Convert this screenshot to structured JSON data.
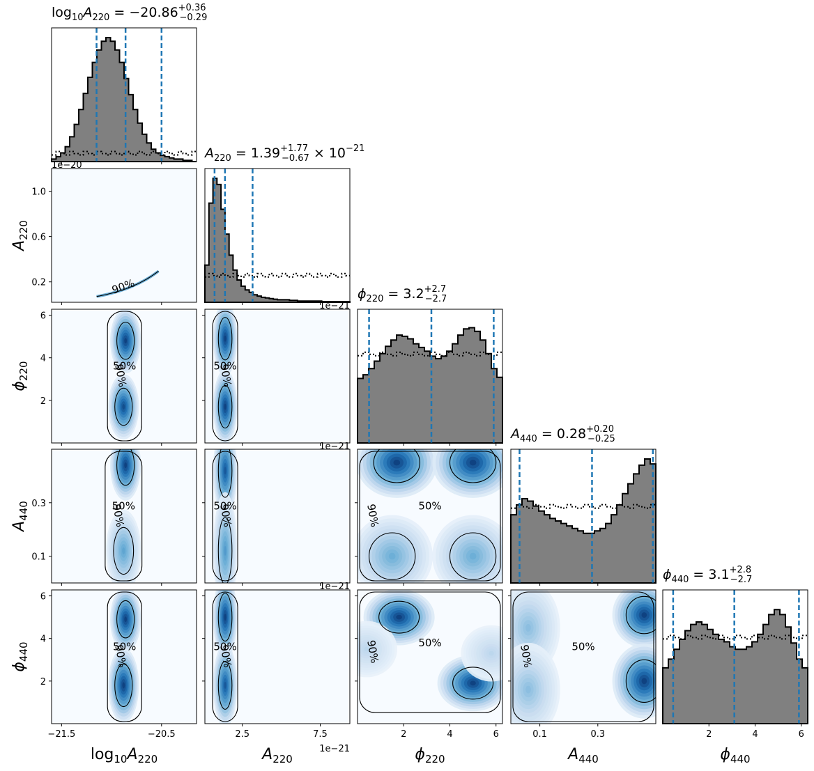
{
  "chart_data": {
    "type": "corner",
    "parameters": [
      {
        "id": "logA220",
        "label": "log10A220",
        "range": [
          -21.6,
          -20.15
        ],
        "ticks": [
          -21.5,
          -20.5
        ],
        "tick_labels": [
          "−21.5",
          "−20.5"
        ],
        "title": {
          "lead": "log",
          "lead_sub": "10",
          "sym": "A",
          "sym_sub": "220",
          "value": " = −20.86",
          "up": "+0.36",
          "down": "−0.29",
          "suffix": ""
        },
        "quantiles": [
          -21.15,
          -20.86,
          -20.5
        ],
        "posterior_hist": [
          0.02,
          0.04,
          0.07,
          0.12,
          0.2,
          0.3,
          0.42,
          0.55,
          0.68,
          0.8,
          0.9,
          0.97,
          1.0,
          0.97,
          0.9,
          0.8,
          0.67,
          0.54,
          0.42,
          0.31,
          0.22,
          0.15,
          0.1,
          0.07,
          0.05,
          0.04,
          0.03,
          0.02,
          0.02,
          0.01,
          0.01,
          0.0
        ],
        "prior_level": 0.07,
        "offset_text": "1e−20"
      },
      {
        "id": "A220",
        "label": "A220",
        "range": [
          0.1,
          9.4
        ],
        "ticks": [
          2.5,
          7.5
        ],
        "tick_labels": [
          "2.5",
          "7.5"
        ],
        "title": {
          "lead": "",
          "lead_sub": "",
          "sym": "A",
          "sym_sub": "220",
          "value": " = 1.39",
          "up": "+1.77",
          "down": "−0.67",
          "suffix": " × 10",
          "suffix_sup": "−21"
        },
        "quantiles": [
          0.72,
          1.39,
          3.16
        ],
        "posterior_hist": [
          0.3,
          0.8,
          1.0,
          0.95,
          0.75,
          0.55,
          0.38,
          0.26,
          0.18,
          0.13,
          0.1,
          0.08,
          0.06,
          0.05,
          0.04,
          0.035,
          0.03,
          0.025,
          0.02,
          0.02,
          0.02,
          0.015,
          0.015,
          0.01,
          0.01,
          0.01,
          0.01,
          0.01,
          0.01,
          0.005,
          0.005,
          0.005,
          0.005,
          0.005,
          0.005,
          0.005
        ],
        "prior_level": 0.22,
        "offset_text": "1e−21"
      },
      {
        "id": "phi220",
        "label": "phi220",
        "range": [
          0,
          6.28
        ],
        "ticks": [
          2,
          4,
          6
        ],
        "tick_labels": [
          "2",
          "4",
          "6"
        ],
        "title": {
          "lead": "",
          "lead_sub": "",
          "sym": "ϕ",
          "sym_sub": "220",
          "value": " = 3.2",
          "up": "+2.7",
          "down": "−2.7",
          "suffix": ""
        },
        "quantiles": [
          0.5,
          3.2,
          5.9
        ],
        "posterior_hist": [
          0.52,
          0.55,
          0.6,
          0.66,
          0.72,
          0.78,
          0.83,
          0.87,
          0.86,
          0.84,
          0.8,
          0.77,
          0.74,
          0.7,
          0.68,
          0.7,
          0.74,
          0.8,
          0.87,
          0.92,
          0.93,
          0.9,
          0.83,
          0.72,
          0.6,
          0.53
        ],
        "prior_level": 0.72,
        "offset_text": ""
      },
      {
        "id": "A440",
        "label": "A440",
        "range": [
          0,
          0.5
        ],
        "ticks": [
          0.1,
          0.3
        ],
        "tick_labels": [
          "0.1",
          "0.3"
        ],
        "title": {
          "lead": "",
          "lead_sub": "",
          "sym": "A",
          "sym_sub": "440",
          "value": " = 0.28",
          "up": "+0.20",
          "down": "−0.25",
          "suffix": ""
        },
        "quantiles": [
          0.03,
          0.28,
          0.49
        ],
        "posterior_hist": [
          0.55,
          0.63,
          0.68,
          0.66,
          0.62,
          0.58,
          0.55,
          0.52,
          0.5,
          0.48,
          0.46,
          0.44,
          0.42,
          0.4,
          0.4,
          0.42,
          0.44,
          0.48,
          0.55,
          0.63,
          0.72,
          0.8,
          0.88,
          0.95,
          1.0,
          0.96
        ],
        "prior_level": 0.62,
        "offset_text": ""
      },
      {
        "id": "phi440",
        "label": "phi440",
        "range": [
          0,
          6.28
        ],
        "ticks": [
          2,
          4,
          6
        ],
        "tick_labels": [
          "2",
          "4",
          "6"
        ],
        "title": {
          "lead": "",
          "lead_sub": "",
          "sym": "ϕ",
          "sym_sub": "440",
          "value": " = 3.1",
          "up": "+2.8",
          "down": "−2.7",
          "suffix": ""
        },
        "quantiles": [
          0.45,
          3.1,
          5.9
        ],
        "posterior_hist": [
          0.45,
          0.52,
          0.6,
          0.68,
          0.75,
          0.8,
          0.82,
          0.8,
          0.76,
          0.72,
          0.68,
          0.66,
          0.62,
          0.6,
          0.6,
          0.62,
          0.66,
          0.72,
          0.8,
          0.88,
          0.92,
          0.88,
          0.78,
          0.65,
          0.52,
          0.45
        ],
        "prior_level": 0.7,
        "offset_text": ""
      }
    ],
    "y_axes": {
      "A220": {
        "ticks": [
          0.2,
          0.6,
          1.0
        ],
        "tick_labels": [
          "0.2",
          "0.6",
          "1.0"
        ],
        "range": [
          0.02,
          1.2
        ]
      },
      "phi220": {
        "ticks": [
          2,
          4,
          6
        ],
        "tick_labels": [
          "2",
          "4",
          "6"
        ],
        "range": [
          0,
          6.28
        ]
      },
      "A440": {
        "ticks": [
          0.1,
          0.3
        ],
        "tick_labels": [
          "0.1",
          "0.3"
        ],
        "range": [
          0,
          0.5
        ]
      },
      "phi440": {
        "ticks": [
          2,
          4,
          6
        ],
        "tick_labels": [
          "2",
          "4",
          "6"
        ],
        "range": [
          0,
          6.28
        ]
      }
    },
    "axis_labels": {
      "x": [
        {
          "lead": "log",
          "lead_sub": "10",
          "sym": "A",
          "sym_sub": "220"
        },
        {
          "sym": "A",
          "sym_sub": "220"
        },
        {
          "sym": "ϕ",
          "sym_sub": "220"
        },
        {
          "sym": "A",
          "sym_sub": "440"
        },
        {
          "sym": "ϕ",
          "sym_sub": "440"
        }
      ],
      "y": [
        {
          "sym": "A",
          "sym_sub": "220"
        },
        {
          "sym": "ϕ",
          "sym_sub": "220"
        },
        {
          "sym": "A",
          "sym_sub": "440"
        },
        {
          "sym": "ϕ",
          "sym_sub": "440"
        }
      ]
    },
    "x_offset_text": "1e−21",
    "contour_levels": [
      "50%",
      "90%"
    ],
    "density_blobs": {
      "logA220_phi220": [
        {
          "x": -20.86,
          "y": 4.8,
          "sx": 0.07,
          "sy": 0.7,
          "w": 1.0
        },
        {
          "x": -20.88,
          "y": 1.7,
          "sx": 0.07,
          "sy": 0.7,
          "w": 0.95
        }
      ],
      "logA220_A440": [
        {
          "x": -20.86,
          "y": 0.44,
          "sx": 0.07,
          "sy": 0.06,
          "w": 1.0
        },
        {
          "x": -20.88,
          "y": 0.12,
          "sx": 0.08,
          "sy": 0.07,
          "w": 0.55
        }
      ],
      "logA220_phi440": [
        {
          "x": -20.86,
          "y": 4.9,
          "sx": 0.07,
          "sy": 0.7,
          "w": 1.0
        },
        {
          "x": -20.88,
          "y": 1.8,
          "sx": 0.07,
          "sy": 0.8,
          "w": 1.0
        }
      ],
      "A220_phi220": [
        {
          "x": 1.4,
          "y": 4.9,
          "sx": 0.35,
          "sy": 0.8,
          "w": 1.0
        },
        {
          "x": 1.4,
          "y": 1.7,
          "sx": 0.35,
          "sy": 0.8,
          "w": 1.0
        }
      ],
      "A220_A440": [
        {
          "x": 1.4,
          "y": 0.42,
          "sx": 0.35,
          "sy": 0.08,
          "w": 0.9
        },
        {
          "x": 1.4,
          "y": 0.12,
          "sx": 0.35,
          "sy": 0.1,
          "w": 0.6
        }
      ],
      "A220_phi440": [
        {
          "x": 1.4,
          "y": 5.0,
          "sx": 0.35,
          "sy": 0.9,
          "w": 1.0
        },
        {
          "x": 1.4,
          "y": 1.8,
          "sx": 0.35,
          "sy": 0.9,
          "w": 0.9
        }
      ],
      "phi220_A440": [
        {
          "x": 1.7,
          "y": 0.45,
          "sx": 0.8,
          "sy": 0.06,
          "w": 1.0
        },
        {
          "x": 5.0,
          "y": 0.45,
          "sx": 0.8,
          "sy": 0.06,
          "w": 1.0
        },
        {
          "x": 1.5,
          "y": 0.1,
          "sx": 0.8,
          "sy": 0.07,
          "w": 0.5
        },
        {
          "x": 5.0,
          "y": 0.1,
          "sx": 0.8,
          "sy": 0.07,
          "w": 0.5
        }
      ],
      "phi220_phi440": [
        {
          "x": 1.8,
          "y": 5.0,
          "sx": 0.7,
          "sy": 0.6,
          "w": 1.0
        },
        {
          "x": 5.0,
          "y": 1.9,
          "sx": 0.7,
          "sy": 0.6,
          "w": 1.0
        },
        {
          "x": 0.4,
          "y": 3.5,
          "sx": 0.6,
          "sy": 0.6,
          "w": 0.25
        },
        {
          "x": 5.8,
          "y": 3.3,
          "sx": 0.6,
          "sy": 0.6,
          "w": 0.25
        }
      ],
      "A440_phi440": [
        {
          "x": 0.46,
          "y": 5.1,
          "sx": 0.05,
          "sy": 0.7,
          "w": 1.0
        },
        {
          "x": 0.46,
          "y": 2.0,
          "sx": 0.05,
          "sy": 0.8,
          "w": 1.0
        },
        {
          "x": 0.06,
          "y": 4.5,
          "sx": 0.05,
          "sy": 1.0,
          "w": 0.4
        },
        {
          "x": 0.06,
          "y": 1.6,
          "sx": 0.05,
          "sy": 1.0,
          "w": 0.4
        }
      ]
    }
  }
}
